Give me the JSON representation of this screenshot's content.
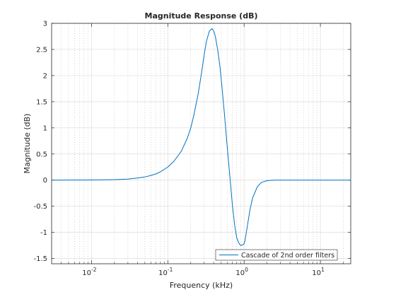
{
  "chart_data": {
    "type": "line",
    "title": "Magnitude Response (dB)",
    "xlabel": "Frequency (kHz)",
    "ylabel": "Magnitude (dB)",
    "xscale": "log",
    "xlim": [
      0.003,
      25
    ],
    "ylim": [
      -1.6,
      3
    ],
    "grid": true,
    "legend_position": "bottom-right",
    "yticks": [
      -1.5,
      -1,
      -0.5,
      0,
      0.5,
      1,
      1.5,
      2,
      2.5,
      3
    ],
    "ytick_labels": [
      "-1.5",
      "-1",
      "-0.5",
      "0",
      "0.5",
      "1",
      "1.5",
      "2",
      "2.5",
      "3"
    ],
    "xticks": [
      0.01,
      0.1,
      1,
      10
    ],
    "xtick_labels": [
      {
        "base": "10",
        "exp": "-2"
      },
      {
        "base": "10",
        "exp": "-1"
      },
      {
        "base": "10",
        "exp": "0"
      },
      {
        "base": "10",
        "exp": "1"
      }
    ],
    "series": [
      {
        "name": "Cascade of 2nd order filters",
        "color": "#0072bd",
        "x": [
          0.003,
          0.01,
          0.02,
          0.03,
          0.04,
          0.05,
          0.06,
          0.07,
          0.08,
          0.1,
          0.12,
          0.15,
          0.18,
          0.2,
          0.22,
          0.25,
          0.28,
          0.3,
          0.32,
          0.35,
          0.38,
          0.4,
          0.42,
          0.45,
          0.48,
          0.5,
          0.55,
          0.6,
          0.65,
          0.7,
          0.75,
          0.8,
          0.85,
          0.9,
          0.95,
          1.0,
          1.03,
          1.07,
          1.12,
          1.2,
          1.3,
          1.5,
          1.7,
          2.0,
          2.5,
          3.0,
          4.0,
          6.0,
          10.0,
          25.0
        ],
        "y": [
          0.0,
          0.003,
          0.01,
          0.02,
          0.04,
          0.06,
          0.09,
          0.12,
          0.16,
          0.25,
          0.36,
          0.55,
          0.8,
          1.0,
          1.25,
          1.65,
          2.1,
          2.4,
          2.65,
          2.85,
          2.9,
          2.85,
          2.75,
          2.5,
          2.2,
          1.95,
          1.3,
          0.65,
          0.08,
          -0.45,
          -0.85,
          -1.1,
          -1.2,
          -1.25,
          -1.24,
          -1.22,
          -1.15,
          -1.0,
          -0.82,
          -0.55,
          -0.33,
          -0.12,
          -0.04,
          -0.01,
          0.0,
          0.0,
          0.0,
          0.0,
          0.0,
          0.0
        ]
      }
    ]
  }
}
